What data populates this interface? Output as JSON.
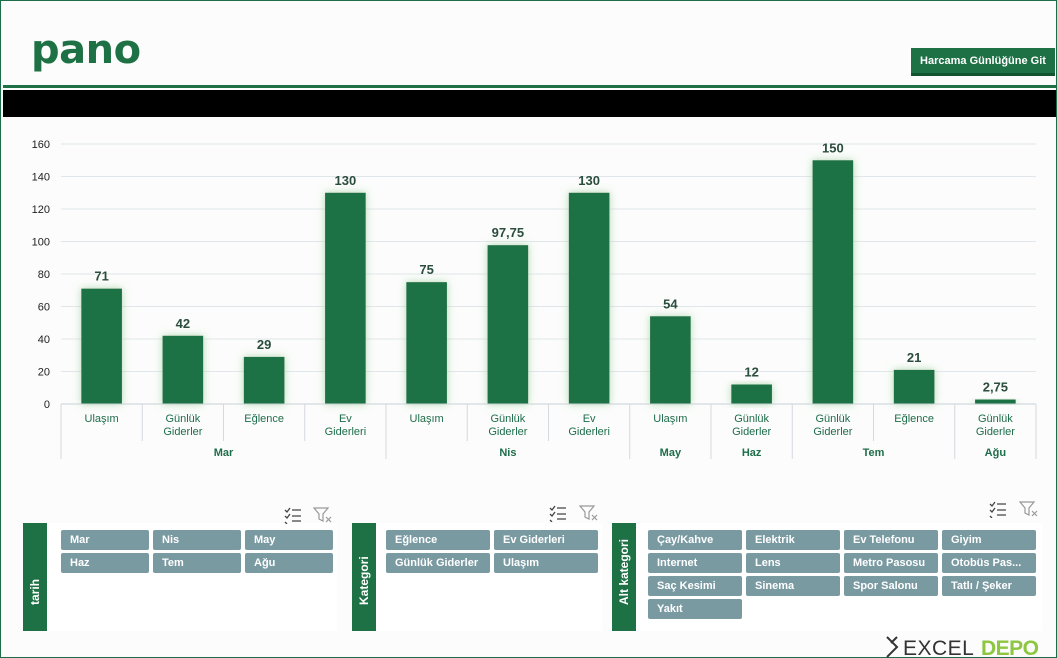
{
  "header": {
    "title": "pano",
    "goto_button_label": "Harcama Günlüğüne Git"
  },
  "colors": {
    "accent": "#1e7145",
    "slicer_button": "#7a9aa2",
    "band": "#000000"
  },
  "chart_data": {
    "type": "bar",
    "ylim": [
      0,
      160
    ],
    "yticks": [
      0,
      20,
      40,
      60,
      80,
      100,
      120,
      140,
      160
    ],
    "grid": true,
    "groups": [
      {
        "name": "Mar",
        "categories": [
          "Ulaşım",
          "Günlük Giderler",
          "Eğlence",
          "Ev Giderleri"
        ],
        "values": [
          71,
          42,
          29,
          130
        ],
        "labels": [
          "71",
          "42",
          "29",
          "130"
        ]
      },
      {
        "name": "Nis",
        "categories": [
          "Ulaşım",
          "Günlük Giderler",
          "Ev Giderleri"
        ],
        "values": [
          75,
          97.75,
          130
        ],
        "labels": [
          "75",
          "97,75",
          "130"
        ]
      },
      {
        "name": "May",
        "categories": [
          "Ulaşım"
        ],
        "values": [
          54
        ],
        "labels": [
          "54"
        ]
      },
      {
        "name": "Haz",
        "categories": [
          "Günlük Giderler"
        ],
        "values": [
          12
        ],
        "labels": [
          "12"
        ]
      },
      {
        "name": "Tem",
        "categories": [
          "Günlük Giderler",
          "Eğlence"
        ],
        "values": [
          150,
          21
        ],
        "labels": [
          "150",
          "21"
        ]
      },
      {
        "name": "Ağu",
        "categories": [
          "Günlük Giderler"
        ],
        "values": [
          2.75
        ],
        "labels": [
          "2,75"
        ]
      }
    ]
  },
  "slicers": {
    "tarih": {
      "title": "tarih",
      "items": [
        "Mar",
        "Nis",
        "May",
        "Haz",
        "Tem",
        "Ağu"
      ]
    },
    "kategori": {
      "title": "Kategori",
      "items": [
        "Eğlence",
        "Ev Giderleri",
        "Günlük Giderler",
        "Ulaşım"
      ]
    },
    "alt_kategori": {
      "title": "Alt kategori",
      "items": [
        "Çay/Kahve",
        "Elektrik",
        "Ev Telefonu",
        "Giyim",
        "Internet",
        "Lens",
        "Metro Pasosu",
        "Otobüs Pas...",
        "Saç Kesimi",
        "Sinema",
        "Spor Salonu",
        "Tatlı / Şeker",
        "Yakıt"
      ]
    }
  },
  "logo": {
    "text": "EXCELDEPO"
  }
}
